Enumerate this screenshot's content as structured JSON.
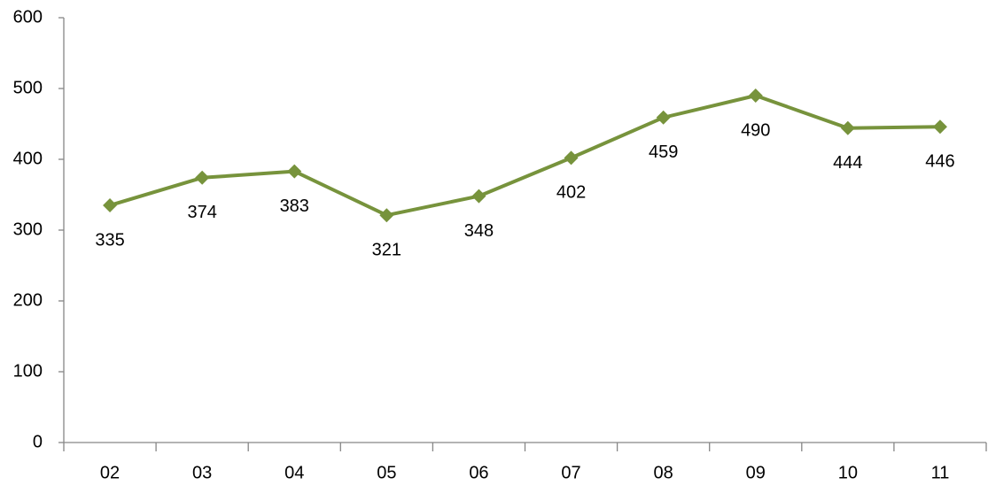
{
  "chart_data": {
    "type": "line",
    "categories": [
      "02",
      "03",
      "04",
      "05",
      "06",
      "07",
      "08",
      "09",
      "10",
      "11"
    ],
    "series": [
      {
        "color": "#77933c",
        "values": [
          335,
          374,
          383,
          321,
          348,
          402,
          459,
          490,
          444,
          446
        ]
      }
    ],
    "ylim": [
      0,
      600
    ],
    "yticks": [
      0,
      100,
      200,
      300,
      400,
      500,
      600
    ],
    "grid": false
  }
}
